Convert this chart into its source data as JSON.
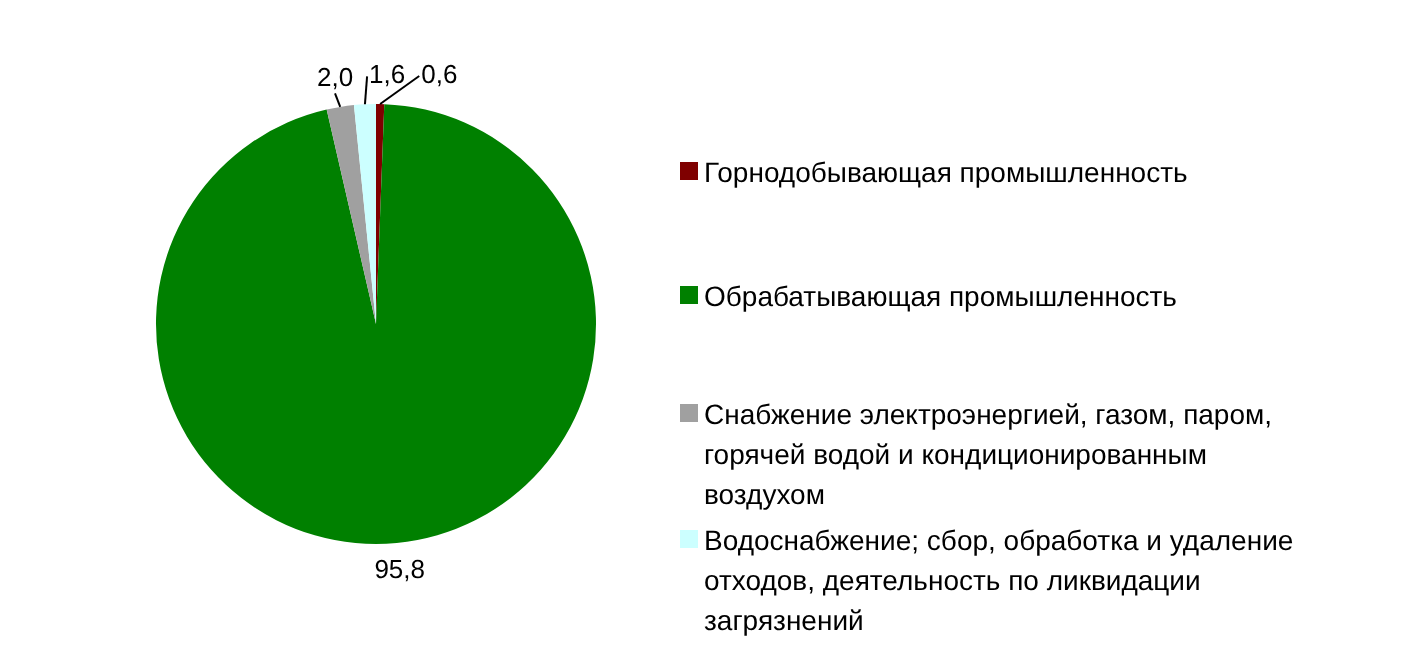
{
  "chart_data": {
    "type": "pie",
    "categories": [
      "Горнодобывающая промышленность",
      "Обрабатывающая промышленность",
      "Снабжение электроэнергией, газом, паром, горячей водой и кондиционированным воздухом",
      "Водоснабжение; сбор, обработка и удаление отходов, деятельность по ликвидации загрязнений"
    ],
    "values": [
      0.6,
      95.8,
      2.0,
      1.6
    ],
    "value_labels": [
      "0,6",
      "95,8",
      "2,0",
      "1,6"
    ],
    "colors": [
      "#7f0000",
      "#008000",
      "#a0a0a0",
      "#ccffff"
    ],
    "legend": "right"
  }
}
